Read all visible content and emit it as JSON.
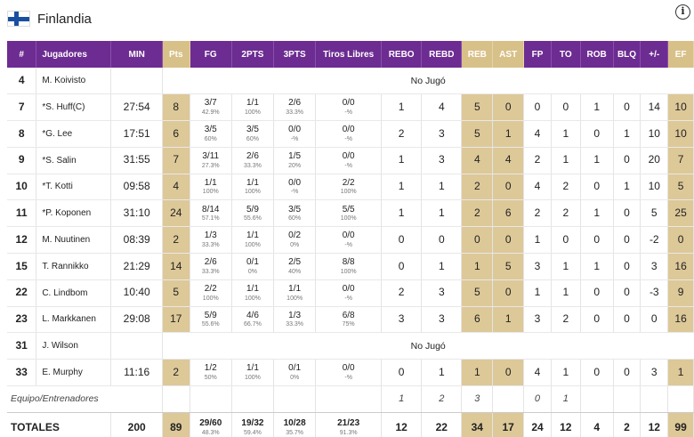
{
  "team": {
    "name": "Finlandia",
    "flag": "finland-flag-icon",
    "info_icon": "info-icon"
  },
  "colors": {
    "header_purple": "#6c2c91",
    "highlight_tan": "#ddc898"
  },
  "columns": [
    "#",
    "Jugadores",
    "MIN",
    "Pts",
    "FG",
    "2PTS",
    "3PTS",
    "Tiros Libres",
    "REBO",
    "REBD",
    "REB",
    "AST",
    "FP",
    "TO",
    "ROB",
    "BLQ",
    "+/-",
    "EF"
  ],
  "no_jugo_label": "No Jugó",
  "players": [
    {
      "num": "4",
      "name": "M. Koivisto",
      "dnp": true
    },
    {
      "num": "7",
      "name": "*S. Huff(C)",
      "min": "27:54",
      "pts": "8",
      "fg": "3/7",
      "fg_pct": "42.9%",
      "p2": "1/1",
      "p2_pct": "100%",
      "p3": "2/6",
      "p3_pct": "33.3%",
      "ft": "0/0",
      "ft_pct": "-%",
      "rebo": "1",
      "rebd": "4",
      "reb": "5",
      "ast": "0",
      "fp": "0",
      "to": "0",
      "rob": "1",
      "blq": "0",
      "pm": "14",
      "ef": "10"
    },
    {
      "num": "8",
      "name": "*G. Lee",
      "min": "17:51",
      "pts": "6",
      "fg": "3/5",
      "fg_pct": "60%",
      "p2": "3/5",
      "p2_pct": "60%",
      "p3": "0/0",
      "p3_pct": "-%",
      "ft": "0/0",
      "ft_pct": "-%",
      "rebo": "2",
      "rebd": "3",
      "reb": "5",
      "ast": "1",
      "fp": "4",
      "to": "1",
      "rob": "0",
      "blq": "1",
      "pm": "10",
      "ef": "10"
    },
    {
      "num": "9",
      "name": "*S. Salin",
      "min": "31:55",
      "pts": "7",
      "fg": "3/11",
      "fg_pct": "27.3%",
      "p2": "2/6",
      "p2_pct": "33.3%",
      "p3": "1/5",
      "p3_pct": "20%",
      "ft": "0/0",
      "ft_pct": "-%",
      "rebo": "1",
      "rebd": "3",
      "reb": "4",
      "ast": "4",
      "fp": "2",
      "to": "1",
      "rob": "1",
      "blq": "0",
      "pm": "20",
      "ef": "7"
    },
    {
      "num": "10",
      "name": "*T. Kotti",
      "min": "09:58",
      "pts": "4",
      "fg": "1/1",
      "fg_pct": "100%",
      "p2": "1/1",
      "p2_pct": "100%",
      "p3": "0/0",
      "p3_pct": "-%",
      "ft": "2/2",
      "ft_pct": "100%",
      "rebo": "1",
      "rebd": "1",
      "reb": "2",
      "ast": "0",
      "fp": "4",
      "to": "2",
      "rob": "0",
      "blq": "1",
      "pm": "10",
      "ef": "5"
    },
    {
      "num": "11",
      "name": "*P. Koponen",
      "min": "31:10",
      "pts": "24",
      "fg": "8/14",
      "fg_pct": "57.1%",
      "p2": "5/9",
      "p2_pct": "55.6%",
      "p3": "3/5",
      "p3_pct": "60%",
      "ft": "5/5",
      "ft_pct": "100%",
      "rebo": "1",
      "rebd": "1",
      "reb": "2",
      "ast": "6",
      "fp": "2",
      "to": "2",
      "rob": "1",
      "blq": "0",
      "pm": "5",
      "ef": "25"
    },
    {
      "num": "12",
      "name": "M. Nuutinen",
      "min": "08:39",
      "pts": "2",
      "fg": "1/3",
      "fg_pct": "33.3%",
      "p2": "1/1",
      "p2_pct": "100%",
      "p3": "0/2",
      "p3_pct": "0%",
      "ft": "0/0",
      "ft_pct": "-%",
      "rebo": "0",
      "rebd": "0",
      "reb": "0",
      "ast": "0",
      "fp": "1",
      "to": "0",
      "rob": "0",
      "blq": "0",
      "pm": "-2",
      "ef": "0"
    },
    {
      "num": "15",
      "name": "T. Rannikko",
      "min": "21:29",
      "pts": "14",
      "fg": "2/6",
      "fg_pct": "33.3%",
      "p2": "0/1",
      "p2_pct": "0%",
      "p3": "2/5",
      "p3_pct": "40%",
      "ft": "8/8",
      "ft_pct": "100%",
      "rebo": "0",
      "rebd": "1",
      "reb": "1",
      "ast": "5",
      "fp": "3",
      "to": "1",
      "rob": "1",
      "blq": "0",
      "pm": "3",
      "ef": "16"
    },
    {
      "num": "22",
      "name": "C. Lindbom",
      "min": "10:40",
      "pts": "5",
      "fg": "2/2",
      "fg_pct": "100%",
      "p2": "1/1",
      "p2_pct": "100%",
      "p3": "1/1",
      "p3_pct": "100%",
      "ft": "0/0",
      "ft_pct": "-%",
      "rebo": "2",
      "rebd": "3",
      "reb": "5",
      "ast": "0",
      "fp": "1",
      "to": "1",
      "rob": "0",
      "blq": "0",
      "pm": "-3",
      "ef": "9"
    },
    {
      "num": "23",
      "name": "L. Markkanen",
      "min": "29:08",
      "pts": "17",
      "fg": "5/9",
      "fg_pct": "55.6%",
      "p2": "4/6",
      "p2_pct": "66.7%",
      "p3": "1/3",
      "p3_pct": "33.3%",
      "ft": "6/8",
      "ft_pct": "75%",
      "rebo": "3",
      "rebd": "3",
      "reb": "6",
      "ast": "1",
      "fp": "3",
      "to": "2",
      "rob": "0",
      "blq": "0",
      "pm": "0",
      "ef": "16"
    },
    {
      "num": "31",
      "name": "J. Wilson",
      "dnp": true
    },
    {
      "num": "33",
      "name": "E. Murphy",
      "min": "11:16",
      "pts": "2",
      "fg": "1/2",
      "fg_pct": "50%",
      "p2": "1/1",
      "p2_pct": "100%",
      "p3": "0/1",
      "p3_pct": "0%",
      "ft": "0/0",
      "ft_pct": "-%",
      "rebo": "0",
      "rebd": "1",
      "reb": "1",
      "ast": "0",
      "fp": "4",
      "to": "1",
      "rob": "0",
      "blq": "0",
      "pm": "3",
      "ef": "1"
    }
  ],
  "team_row": {
    "label": "Equipo/Entrenadores",
    "rebo": "1",
    "rebd": "2",
    "reb": "3",
    "fp": "0",
    "to": "1"
  },
  "totals": {
    "label": "TOTALES",
    "min": "200",
    "pts": "89",
    "fg": "29/60",
    "fg_pct": "48.3%",
    "p2": "19/32",
    "p2_pct": "59.4%",
    "p3": "10/28",
    "p3_pct": "35.7%",
    "ft": "21/23",
    "ft_pct": "91.3%",
    "rebo": "12",
    "rebd": "22",
    "reb": "34",
    "ast": "17",
    "fp": "24",
    "to": "12",
    "rob": "4",
    "blq": "2",
    "pm": "12",
    "ef": "99"
  }
}
